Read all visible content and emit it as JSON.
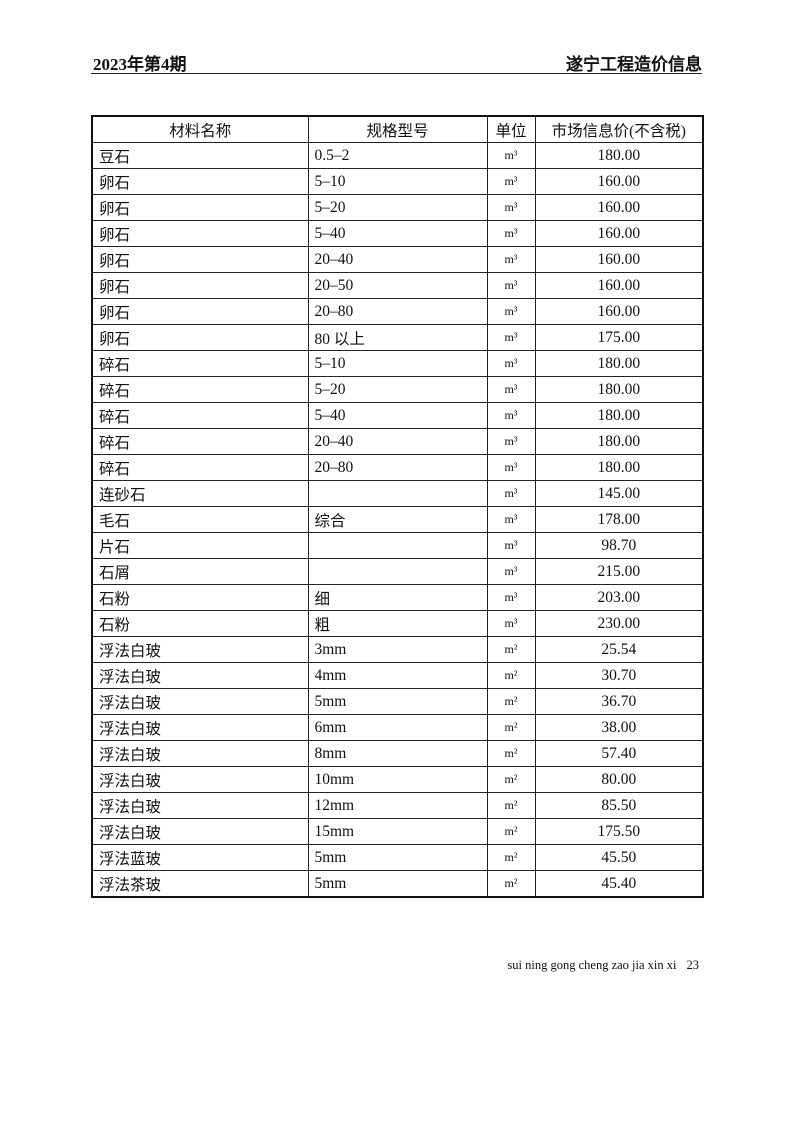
{
  "header": {
    "issue": "2023年第4期",
    "publication": "遂宁工程造价信息"
  },
  "table": {
    "columns": [
      "材料名称",
      "规格型号",
      "单位",
      "市场信息价(不含税)"
    ],
    "rows": [
      [
        "豆石",
        "0.5–2",
        "m³",
        "180.00"
      ],
      [
        "卵石",
        "5–10",
        "m³",
        "160.00"
      ],
      [
        "卵石",
        "5–20",
        "m³",
        "160.00"
      ],
      [
        "卵石",
        "5–40",
        "m³",
        "160.00"
      ],
      [
        "卵石",
        "20–40",
        "m³",
        "160.00"
      ],
      [
        "卵石",
        "20–50",
        "m³",
        "160.00"
      ],
      [
        "卵石",
        "20–80",
        "m³",
        "160.00"
      ],
      [
        "卵石",
        "80 以上",
        "m³",
        "175.00"
      ],
      [
        "碎石",
        "5–10",
        "m³",
        "180.00"
      ],
      [
        "碎石",
        "5–20",
        "m³",
        "180.00"
      ],
      [
        "碎石",
        "5–40",
        "m³",
        "180.00"
      ],
      [
        "碎石",
        "20–40",
        "m³",
        "180.00"
      ],
      [
        "碎石",
        "20–80",
        "m³",
        "180.00"
      ],
      [
        "连砂石",
        "",
        "m³",
        "145.00"
      ],
      [
        "毛石",
        "综合",
        "m³",
        "178.00"
      ],
      [
        "片石",
        "",
        "m³",
        "98.70"
      ],
      [
        "石屑",
        "",
        "m³",
        "215.00"
      ],
      [
        "石粉",
        "细",
        "m³",
        "203.00"
      ],
      [
        "石粉",
        "粗",
        "m³",
        "230.00"
      ],
      [
        "浮法白玻",
        "3mm",
        "m²",
        "25.54"
      ],
      [
        "浮法白玻",
        "4mm",
        "m²",
        "30.70"
      ],
      [
        "浮法白玻",
        "5mm",
        "m²",
        "36.70"
      ],
      [
        "浮法白玻",
        "6mm",
        "m²",
        "38.00"
      ],
      [
        "浮法白玻",
        "8mm",
        "m²",
        "57.40"
      ],
      [
        "浮法白玻",
        "10mm",
        "m²",
        "80.00"
      ],
      [
        "浮法白玻",
        "12mm",
        "m²",
        "85.50"
      ],
      [
        "浮法白玻",
        "15mm",
        "m²",
        "175.50"
      ],
      [
        "浮法蓝玻",
        "5mm",
        "m²",
        "45.50"
      ],
      [
        "浮法茶玻",
        "5mm",
        "m²",
        "45.40"
      ]
    ]
  },
  "footer": {
    "pinyin": "sui ning gong cheng zao jia xin xi",
    "page_number": "23"
  }
}
